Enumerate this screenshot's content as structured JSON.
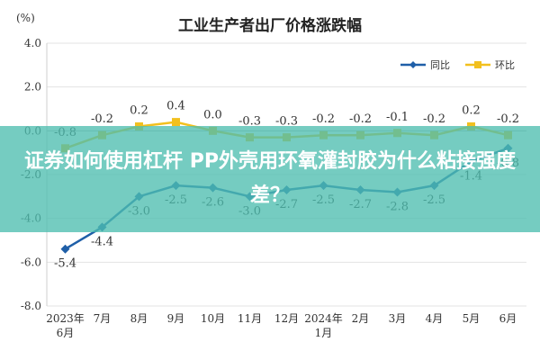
{
  "chart_data": {
    "type": "line",
    "title": "工业生产者出厂价格涨跌幅",
    "y_unit": "(%)",
    "categories": [
      [
        "2023年",
        "6月"
      ],
      [
        "7月"
      ],
      [
        "8月"
      ],
      [
        "9月"
      ],
      [
        "10月"
      ],
      [
        "11月"
      ],
      [
        "12月"
      ],
      [
        "2024年",
        "1月"
      ],
      [
        "2月"
      ],
      [
        "3月"
      ],
      [
        "4月"
      ],
      [
        "5月"
      ],
      [
        "6月"
      ]
    ],
    "ylim": [
      -8.0,
      4.0
    ],
    "yticks": [
      "4.0",
      "2.0",
      "0.0",
      "-2.0",
      "-4.0",
      "-6.0",
      "-8.0"
    ],
    "grid": true,
    "legend_position": "top-right",
    "series": [
      {
        "name": "同比",
        "color": "#1f5fa8",
        "values": [
          -5.4,
          -4.4,
          -3.0,
          -2.5,
          -2.6,
          -3.0,
          -2.7,
          -2.5,
          -2.7,
          -2.8,
          -2.5,
          -1.4,
          -0.8
        ],
        "labels": [
          "-5.4",
          "-4.4",
          "-3.0",
          "-2.5",
          "-2.6",
          "-3.0",
          "-2.7",
          "-2.5",
          "-2.7",
          "-2.8",
          "-2.5",
          "-1.4",
          "-0.8"
        ]
      },
      {
        "name": "环比",
        "color": "#f2c01e",
        "values": [
          -0.8,
          -0.2,
          0.2,
          0.4,
          0.0,
          -0.3,
          -0.3,
          -0.2,
          -0.2,
          -0.1,
          -0.2,
          0.2,
          -0.2
        ],
        "labels": [
          "-0.8",
          "-0.2",
          "0.2",
          "0.4",
          "0.0",
          "-0.3",
          "-0.3",
          "-0.2",
          "-0.2",
          "-0.1",
          "-0.2",
          "0.2",
          "-0.2"
        ]
      }
    ]
  },
  "overlay": {
    "text": "证券如何使用杠杆 PP外壳用环氧灌封胶为什么粘接强度差？"
  }
}
